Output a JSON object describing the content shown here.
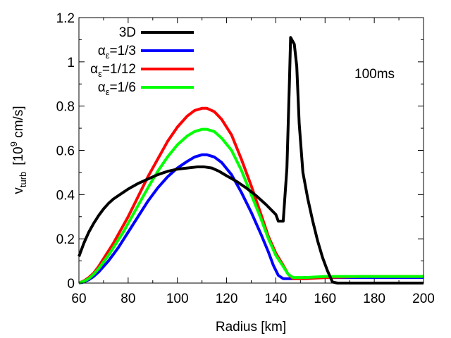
{
  "chart_data": {
    "type": "line",
    "title": "",
    "annotation": "100ms",
    "xlabel": "Radius [km]",
    "ylabel": {
      "base": "v",
      "sub": "turb",
      "unit_pre": "[10",
      "unit_sup": "9",
      "unit_post": " cm/s]"
    },
    "xlim": [
      60,
      200
    ],
    "ylim": [
      0,
      1.2
    ],
    "xticks": [
      60,
      80,
      100,
      120,
      140,
      160,
      180,
      200
    ],
    "xtick_labels": [
      "60",
      "80",
      "100",
      "120",
      "140",
      "160",
      "180",
      "200"
    ],
    "yticks": [
      0,
      0.2,
      0.4,
      0.6,
      0.8,
      1,
      1.2
    ],
    "ytick_labels": [
      "0",
      "0.2",
      "0.4",
      "0.6",
      "0.8",
      "1",
      "1.2"
    ],
    "grid": false,
    "legend_position": "top-left",
    "series": [
      {
        "name": "3D",
        "label_parts": {
          "text": "3D"
        },
        "color": "#000000",
        "points": [
          [
            60,
            0.12
          ],
          [
            62,
            0.18
          ],
          [
            64,
            0.23
          ],
          [
            66,
            0.27
          ],
          [
            68,
            0.305
          ],
          [
            70,
            0.335
          ],
          [
            72,
            0.36
          ],
          [
            74,
            0.38
          ],
          [
            76,
            0.395
          ],
          [
            78,
            0.41
          ],
          [
            80,
            0.425
          ],
          [
            84,
            0.45
          ],
          [
            88,
            0.47
          ],
          [
            92,
            0.49
          ],
          [
            96,
            0.505
          ],
          [
            100,
            0.515
          ],
          [
            104,
            0.52
          ],
          [
            108,
            0.525
          ],
          [
            111,
            0.525
          ],
          [
            114,
            0.52
          ],
          [
            117,
            0.505
          ],
          [
            120,
            0.485
          ],
          [
            124,
            0.46
          ],
          [
            128,
            0.43
          ],
          [
            132,
            0.395
          ],
          [
            136,
            0.355
          ],
          [
            140,
            0.31
          ],
          [
            141,
            0.28
          ],
          [
            143,
            0.28
          ],
          [
            144.5,
            0.52
          ],
          [
            145.5,
            0.9
          ],
          [
            146,
            1.11
          ],
          [
            147.5,
            1.08
          ],
          [
            148.5,
            0.98
          ],
          [
            149.5,
            0.72
          ],
          [
            151,
            0.5
          ],
          [
            153,
            0.38
          ],
          [
            155,
            0.28
          ],
          [
            157,
            0.19
          ],
          [
            159,
            0.115
          ],
          [
            161,
            0.055
          ],
          [
            162,
            0.03
          ],
          [
            163,
            0.005
          ],
          [
            165,
            0
          ],
          [
            200,
            0
          ]
        ]
      },
      {
        "name": "αε=1/3",
        "label_parts": {
          "alpha": "α",
          "sub": "ε",
          "rest": "=1/3"
        },
        "color": "#0000ff",
        "points": [
          [
            60,
            0
          ],
          [
            62,
            0.005
          ],
          [
            64,
            0.015
          ],
          [
            66,
            0.03
          ],
          [
            68,
            0.05
          ],
          [
            70,
            0.075
          ],
          [
            72,
            0.1
          ],
          [
            74,
            0.13
          ],
          [
            76,
            0.16
          ],
          [
            78,
            0.195
          ],
          [
            80,
            0.23
          ],
          [
            84,
            0.3
          ],
          [
            88,
            0.37
          ],
          [
            92,
            0.43
          ],
          [
            96,
            0.48
          ],
          [
            100,
            0.52
          ],
          [
            104,
            0.55
          ],
          [
            107,
            0.57
          ],
          [
            110,
            0.58
          ],
          [
            112,
            0.58
          ],
          [
            115,
            0.57
          ],
          [
            118,
            0.545
          ],
          [
            122,
            0.49
          ],
          [
            126,
            0.41
          ],
          [
            130,
            0.32
          ],
          [
            134,
            0.22
          ],
          [
            137,
            0.14
          ],
          [
            139,
            0.08
          ],
          [
            141,
            0.035
          ],
          [
            143,
            0.02
          ],
          [
            147,
            0.02
          ],
          [
            152,
            0.025
          ],
          [
            200,
            0.025
          ]
        ]
      },
      {
        "name": "αε=1/12",
        "label_parts": {
          "alpha": "α",
          "sub": "ε",
          "rest": "=1/12"
        },
        "color": "#ff0000",
        "points": [
          [
            60,
            0
          ],
          [
            62,
            0.01
          ],
          [
            64,
            0.025
          ],
          [
            66,
            0.045
          ],
          [
            68,
            0.075
          ],
          [
            70,
            0.11
          ],
          [
            72,
            0.145
          ],
          [
            74,
            0.18
          ],
          [
            76,
            0.22
          ],
          [
            78,
            0.26
          ],
          [
            80,
            0.3
          ],
          [
            84,
            0.39
          ],
          [
            88,
            0.48
          ],
          [
            92,
            0.56
          ],
          [
            96,
            0.64
          ],
          [
            100,
            0.705
          ],
          [
            104,
            0.755
          ],
          [
            107,
            0.78
          ],
          [
            110,
            0.79
          ],
          [
            112,
            0.79
          ],
          [
            115,
            0.775
          ],
          [
            118,
            0.74
          ],
          [
            122,
            0.67
          ],
          [
            126,
            0.56
          ],
          [
            130,
            0.44
          ],
          [
            134,
            0.31
          ],
          [
            137,
            0.21
          ],
          [
            140,
            0.135
          ],
          [
            143,
            0.08
          ],
          [
            145,
            0.04
          ],
          [
            147,
            0.02
          ],
          [
            152,
            0.02
          ],
          [
            160,
            0.025
          ],
          [
            175,
            0.03
          ],
          [
            200,
            0.03
          ]
        ]
      },
      {
        "name": "αε=1/6",
        "label_parts": {
          "alpha": "α",
          "sub": "ε",
          "rest": "=1/6"
        },
        "color": "#00ff00",
        "points": [
          [
            60,
            0
          ],
          [
            62,
            0.008
          ],
          [
            64,
            0.02
          ],
          [
            66,
            0.04
          ],
          [
            68,
            0.065
          ],
          [
            70,
            0.095
          ],
          [
            72,
            0.125
          ],
          [
            74,
            0.16
          ],
          [
            76,
            0.195
          ],
          [
            78,
            0.23
          ],
          [
            80,
            0.27
          ],
          [
            84,
            0.35
          ],
          [
            88,
            0.43
          ],
          [
            92,
            0.505
          ],
          [
            96,
            0.57
          ],
          [
            100,
            0.625
          ],
          [
            104,
            0.665
          ],
          [
            107,
            0.685
          ],
          [
            110,
            0.695
          ],
          [
            112,
            0.695
          ],
          [
            115,
            0.685
          ],
          [
            118,
            0.655
          ],
          [
            122,
            0.6
          ],
          [
            126,
            0.51
          ],
          [
            130,
            0.4
          ],
          [
            134,
            0.29
          ],
          [
            137,
            0.2
          ],
          [
            140,
            0.125
          ],
          [
            143,
            0.075
          ],
          [
            145,
            0.04
          ],
          [
            147,
            0.025
          ],
          [
            152,
            0.025
          ],
          [
            160,
            0.03
          ],
          [
            175,
            0.03
          ],
          [
            200,
            0.03
          ]
        ]
      }
    ]
  }
}
